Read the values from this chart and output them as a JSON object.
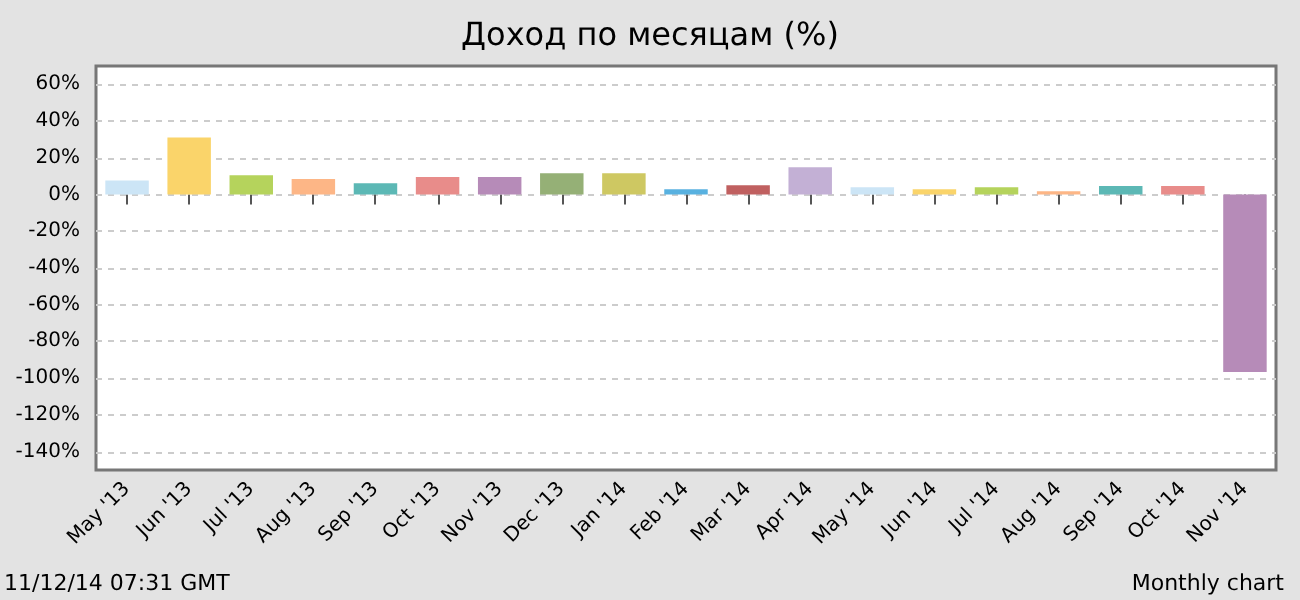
{
  "chart_data": {
    "type": "bar",
    "title": "Доход по месяцам (%)",
    "categories": [
      "May '13",
      "Jun '13",
      "Jul '13",
      "Aug '13",
      "Sep '13",
      "Oct '13",
      "Nov '13",
      "Dec '13",
      "Jan '14",
      "Feb '14",
      "Mar '14",
      "Apr '14",
      "May '14",
      "Jun '14",
      "Jul '14",
      "Aug '14",
      "Sep '14",
      "Oct '14",
      "Nov '14"
    ],
    "values": [
      7.6,
      31,
      10.5,
      8.4,
      6.2,
      9.5,
      9.5,
      11.6,
      11.6,
      2.9,
      5.1,
      14.9,
      4,
      2.9,
      4,
      1.8,
      4.7,
      4.7,
      -96.7
    ],
    "colors": [
      "#cce5f6",
      "#fad46a",
      "#b5d35c",
      "#fdb686",
      "#5cb8b5",
      "#e88c8a",
      "#b68bb8",
      "#95b076",
      "#cec862",
      "#58b1e0",
      "#c06060",
      "#c3b0d5",
      "#cce5f6",
      "#fad46a",
      "#b5d35c",
      "#fdb686",
      "#5cb8b5",
      "#e88c8a",
      "#b68bb8"
    ],
    "ylim": [
      -150,
      70
    ],
    "yticks": [
      {
        "value": -140,
        "label": "-140%"
      },
      {
        "value": -120,
        "label": "-120%"
      },
      {
        "value": -100,
        "label": "-100%"
      },
      {
        "value": -80,
        "label": "-80%"
      },
      {
        "value": -60,
        "label": "-60%"
      },
      {
        "value": -40,
        "label": "-40%"
      },
      {
        "value": -20,
        "label": "-20%"
      },
      {
        "value": 0,
        "label": "0%"
      },
      {
        "value": 20,
        "label": "20%"
      },
      {
        "value": 40,
        "label": "40%"
      },
      {
        "value": 60,
        "label": "60%"
      }
    ],
    "grid": "y",
    "annotations": [
      "11/12/14 07:31 GMT",
      "Monthly chart"
    ]
  }
}
